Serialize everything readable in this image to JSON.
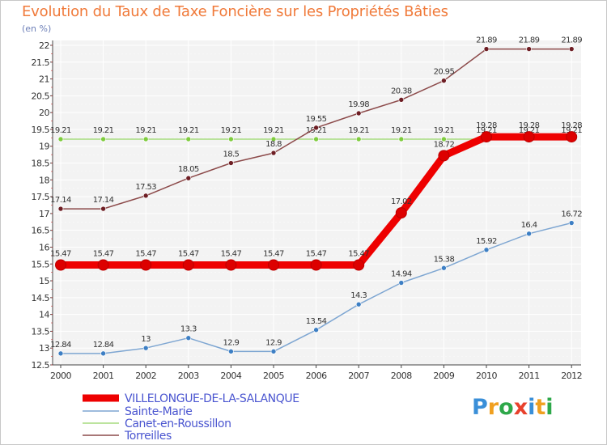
{
  "title": "Evolution du Taux de Taxe Foncière sur les Propriétés Bâties",
  "unit_label": "(en %)",
  "logo": {
    "text": "Proxiti",
    "letters": [
      {
        "ch": "P",
        "color": "#3a8fd8"
      },
      {
        "ch": "r",
        "color": "#f0a020"
      },
      {
        "ch": "o",
        "color": "#2ea84a"
      },
      {
        "ch": "x",
        "color": "#e8412c"
      },
      {
        "ch": "i",
        "color": "#3a8fd8"
      },
      {
        "ch": "t",
        "color": "#f0a020"
      },
      {
        "ch": "i",
        "color": "#2ea84a"
      }
    ]
  },
  "chart_data": {
    "type": "line",
    "title": "Evolution du Taux de Taxe Foncière sur les Propriétés Bâties",
    "ylabel": "(en %)",
    "xlabel": "",
    "ylim": [
      12.5,
      22
    ],
    "grid": true,
    "legend_position": "bottom-left",
    "categories": [
      "2000",
      "2001",
      "2002",
      "2003",
      "2004",
      "2005",
      "2006",
      "2007",
      "2008",
      "2009",
      "2010",
      "2011",
      "2012"
    ],
    "y_ticks": [
      "12.5",
      "13",
      "13.5",
      "14",
      "14.5",
      "15",
      "15.5",
      "16",
      "16.5",
      "17",
      "17.5",
      "18",
      "18.5",
      "19",
      "19.5",
      "20",
      "20.5",
      "21",
      "21.5",
      "22"
    ],
    "series": [
      {
        "name": "VILLELONGUE-DE-LA-SALANQUE",
        "color": "#ee0000",
        "marker_color": "#dd0000",
        "emphasis": true,
        "values": [
          15.47,
          15.47,
          15.47,
          15.47,
          15.47,
          15.47,
          15.47,
          15.47,
          17.02,
          18.72,
          19.28,
          19.28,
          19.28
        ],
        "labels": [
          "15.47",
          "15.47",
          "15.47",
          "15.47",
          "15.47",
          "15.47",
          "15.47",
          "15.47",
          "17.02",
          "18.72",
          "19.28",
          "19.28",
          "19.28"
        ]
      },
      {
        "name": "Sainte-Marie",
        "color": "#7ea6d2",
        "marker_color": "#3d7fc4",
        "emphasis": false,
        "values": [
          12.84,
          12.84,
          13,
          13.3,
          12.9,
          12.9,
          13.54,
          14.3,
          14.94,
          15.38,
          15.92,
          16.4,
          16.72
        ],
        "labels": [
          "12.84",
          "12.84",
          "13",
          "13.3",
          "12.9",
          "12.9",
          "13.54",
          "14.3",
          "14.94",
          "15.38",
          "15.92",
          "16.4",
          "16.72"
        ]
      },
      {
        "name": "Canet-en-Roussillon",
        "color": "#a6dc7e",
        "marker_color": "#7fcc3e",
        "emphasis": false,
        "values": [
          19.21,
          19.21,
          19.21,
          19.21,
          19.21,
          19.21,
          19.21,
          19.21,
          19.21,
          19.21,
          19.21,
          19.21,
          19.21
        ],
        "labels": [
          "19.21",
          "19.21",
          "19.21",
          "19.21",
          "19.21",
          "19.21",
          "19.21",
          "19.21",
          "19.21",
          "19.21",
          "19.21",
          "19.21",
          "19.21"
        ]
      },
      {
        "name": "Torreilles",
        "color": "#8c4a4a",
        "marker_color": "#6e1e24",
        "emphasis": false,
        "values": [
          17.14,
          17.14,
          17.53,
          18.05,
          18.5,
          18.8,
          19.55,
          19.98,
          20.38,
          20.95,
          21.89,
          21.89,
          21.89
        ],
        "labels": [
          "17.14",
          "17.14",
          "17.53",
          "18.05",
          "18.5",
          "18.8",
          "19.55",
          "19.98",
          "20.38",
          "20.95",
          "21.89",
          "21.89",
          "21.89"
        ]
      }
    ]
  }
}
